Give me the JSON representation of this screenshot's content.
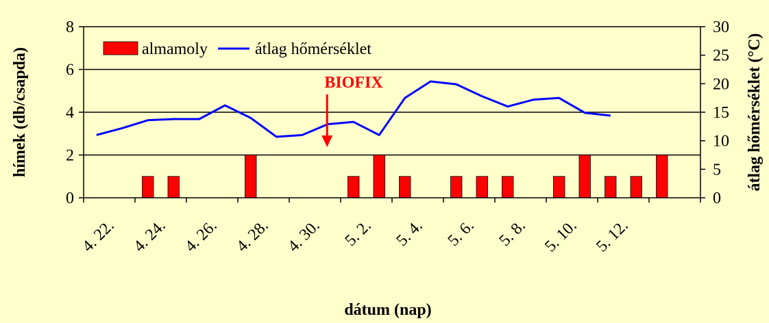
{
  "chart_data": {
    "type": "bar",
    "x_ticks": [
      "4. 22.",
      "4. 24.",
      "4. 26.",
      "4. 28.",
      "4. 30.",
      "5. 2.",
      "5. 4.",
      "5. 6.",
      "5. 8.",
      "5. 10.",
      "5. 12."
    ],
    "xlabel": "dátum (nap)",
    "ylabel_left": "hímek (db/csapda)",
    "ylabel_right": "átlag hőmérséklet (°C)",
    "ylim_left": [
      0,
      8
    ],
    "yticks_left": [
      0,
      2,
      4,
      6,
      8
    ],
    "ylim_right": [
      0,
      30
    ],
    "yticks_right": [
      0,
      5,
      10,
      15,
      20,
      25,
      30
    ],
    "grid": "horizontal at left-axis major ticks",
    "legend_position": "top-left",
    "series": [
      {
        "name": "almamoly",
        "type": "bar",
        "axis": "left",
        "color": "#ff0000",
        "points": [
          {
            "x": 3,
            "y": 1
          },
          {
            "x": 4,
            "y": 1
          },
          {
            "x": 7,
            "y": 2
          },
          {
            "x": 11,
            "y": 1
          },
          {
            "x": 12,
            "y": 2
          },
          {
            "x": 13,
            "y": 1
          },
          {
            "x": 15,
            "y": 1
          },
          {
            "x": 16,
            "y": 1
          },
          {
            "x": 17,
            "y": 1
          },
          {
            "x": 19,
            "y": 1
          },
          {
            "x": 20,
            "y": 2
          },
          {
            "x": 21,
            "y": 1
          },
          {
            "x": 22,
            "y": 1
          },
          {
            "x": 23,
            "y": 2
          }
        ]
      },
      {
        "name": "átlag hőmérséklet",
        "type": "line",
        "axis": "right",
        "color": "#0000ff",
        "points": [
          {
            "x": 1,
            "y": 11.0
          },
          {
            "x": 2,
            "y": 12.2
          },
          {
            "x": 3,
            "y": 13.6
          },
          {
            "x": 4,
            "y": 13.8
          },
          {
            "x": 5,
            "y": 13.8
          },
          {
            "x": 6,
            "y": 16.2
          },
          {
            "x": 7,
            "y": 14.0
          },
          {
            "x": 8,
            "y": 10.7
          },
          {
            "x": 9,
            "y": 11.0
          },
          {
            "x": 10,
            "y": 12.9
          },
          {
            "x": 11,
            "y": 13.3
          },
          {
            "x": 12,
            "y": 11.0
          },
          {
            "x": 13,
            "y": 17.5
          },
          {
            "x": 14,
            "y": 20.4
          },
          {
            "x": 15,
            "y": 19.9
          },
          {
            "x": 16,
            "y": 17.8
          },
          {
            "x": 17,
            "y": 16.0
          },
          {
            "x": 18,
            "y": 17.2
          },
          {
            "x": 19,
            "y": 17.5
          },
          {
            "x": 20,
            "y": 14.9
          },
          {
            "x": 21,
            "y": 14.4
          }
        ]
      }
    ],
    "annotation": {
      "text": "BIOFIX",
      "color": "#ff0000",
      "x": 10
    }
  }
}
